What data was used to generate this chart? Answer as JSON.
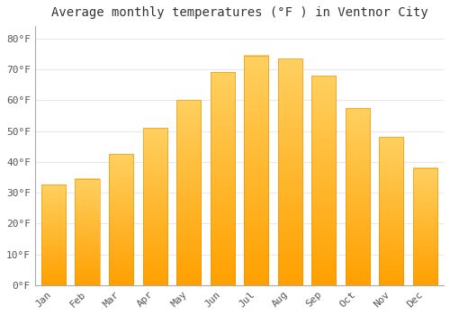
{
  "months": [
    "Jan",
    "Feb",
    "Mar",
    "Apr",
    "May",
    "Jun",
    "Jul",
    "Aug",
    "Sep",
    "Oct",
    "Nov",
    "Dec"
  ],
  "values": [
    32.5,
    34.5,
    42.5,
    51.0,
    60.0,
    69.0,
    74.5,
    73.5,
    68.0,
    57.5,
    48.0,
    38.0
  ],
  "bar_color_top": "#FFD060",
  "bar_color_bottom": "#FFA000",
  "bar_edge_color": "#E89000",
  "title": "Average monthly temperatures (°F ) in Ventnor City",
  "ylim": [
    0,
    84
  ],
  "ytick_values": [
    0,
    10,
    20,
    30,
    40,
    50,
    60,
    70,
    80
  ],
  "ytick_labels": [
    "0°F",
    "10°F",
    "20°F",
    "30°F",
    "40°F",
    "50°F",
    "60°F",
    "70°F",
    "80°F"
  ],
  "background_color": "#ffffff",
  "grid_color": "#e8e8e8",
  "title_fontsize": 10,
  "tick_fontsize": 8,
  "bar_width": 0.72,
  "figsize": [
    5.0,
    3.5
  ],
  "dpi": 100
}
